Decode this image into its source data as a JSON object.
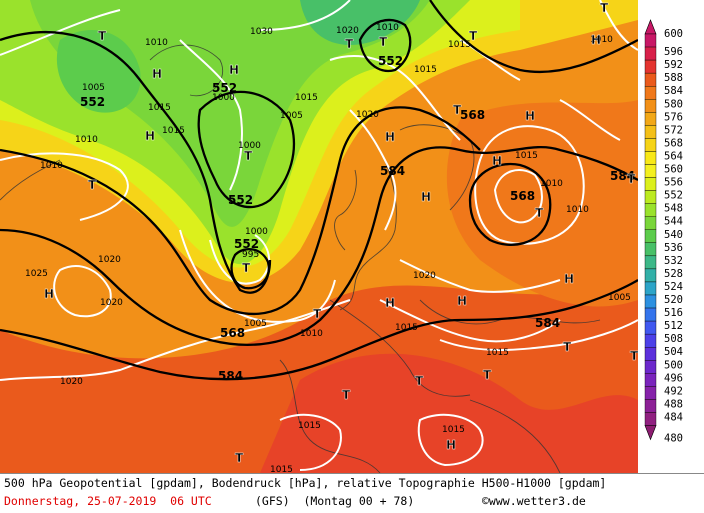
{
  "footer": {
    "line1": "500 hPa Geopotential [gpdam], Bodendruck [hPa], relative Topographie H500-H1000 [gpdam]",
    "date": "Donnerstag, 25-07-2019  06 UTC",
    "model": "(GFS)  (Montag 00 + 78)",
    "copyright": "©www.wetter3.de"
  },
  "legend": {
    "values": [
      "600",
      "596",
      "592",
      "588",
      "584",
      "580",
      "576",
      "572",
      "568",
      "564",
      "560",
      "556",
      "552",
      "548",
      "544",
      "540",
      "536",
      "532",
      "528",
      "524",
      "520",
      "516",
      "512",
      "508",
      "504",
      "500",
      "496",
      "492",
      "488",
      "484",
      "480"
    ],
    "colors": [
      "#c81866",
      "#d8204a",
      "#e43430",
      "#ea5a1c",
      "#f0781a",
      "#f29018",
      "#f2a818",
      "#f4c018",
      "#f6d418",
      "#f8e818",
      "#f4f020",
      "#dcf01c",
      "#bcea20",
      "#9ae22c",
      "#7ad63a",
      "#5ccc4c",
      "#48c068",
      "#3cb888",
      "#32b0a8",
      "#2ca4c8",
      "#2c90e0",
      "#3474ec",
      "#4058f0",
      "#4c40e8",
      "#5c30dc",
      "#6c28cc",
      "#7a24bc",
      "#8622aa",
      "#8c2096",
      "#902080",
      "#8c1c70"
    ]
  },
  "map_labels": {
    "highs": [
      "H",
      "H",
      "H",
      "H",
      "H",
      "H",
      "H",
      "H",
      "H",
      "H",
      "H",
      "H",
      "H"
    ],
    "lows": [
      "T",
      "T",
      "T",
      "T",
      "T",
      "T",
      "T",
      "T",
      "T",
      "T",
      "T",
      "T",
      "T",
      "T",
      "T",
      "T",
      "T",
      "T"
    ],
    "geopotential": [
      "552",
      "552",
      "552",
      "552",
      "552",
      "568",
      "568",
      "584",
      "584",
      "584",
      "568",
      "584"
    ],
    "pressure": [
      "1010",
      "1005",
      "1010",
      "1015",
      "1015",
      "1020",
      "1025",
      "1020",
      "1030",
      "1020",
      "1010",
      "1015",
      "1015",
      "1020",
      "1015",
      "1005",
      "1000",
      "1000",
      "995",
      "1000",
      "1005",
      "1010",
      "1015",
      "1020",
      "1015",
      "1015",
      "1010",
      "1010",
      "1005",
      "1015",
      "1010",
      "1015",
      "1015",
      "1020",
      "1010"
    ]
  }
}
